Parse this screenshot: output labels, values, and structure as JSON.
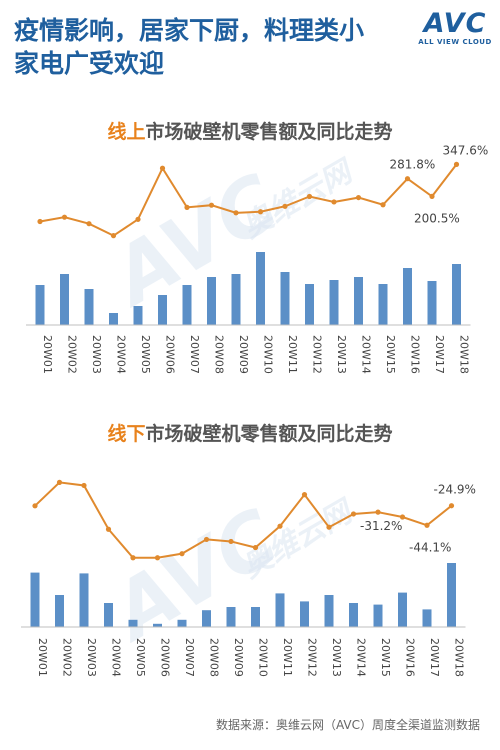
{
  "headline": {
    "line1": "疫情影响，居家下厨，料理类小",
    "line2": "家电广受欢迎"
  },
  "logo": {
    "main": "AVC",
    "sub": "ALL VIEW CLOUD"
  },
  "watermark": {
    "main": "AVC",
    "sub": "奥维云网"
  },
  "source": "数据来源：奥维云网（AVC）周度全渠道监测数据",
  "colors": {
    "bar": "#5b8fc7",
    "line": "#e08a2e",
    "axis": "#bfbfbf",
    "label": "#444444"
  },
  "chart_data": [
    {
      "type": "bar+line",
      "title_highlight": "线上",
      "title_rest": "市场破壁机零售额及同比走势",
      "categories": [
        "20W01",
        "20W02",
        "20W03",
        "20W04",
        "20W05",
        "20W06",
        "20W07",
        "20W08",
        "20W09",
        "20W10",
        "20W11",
        "20W12",
        "20W13",
        "20W14",
        "20W15",
        "20W16",
        "20W17",
        "20W18"
      ],
      "bar_values": [
        40,
        51,
        36,
        12,
        19,
        30,
        40,
        48,
        51,
        73,
        53,
        41,
        45,
        48,
        41,
        57,
        44,
        61
      ],
      "bar_ylim": [
        0,
        100
      ],
      "line_values": [
        85,
        105,
        75,
        20,
        95,
        330,
        150,
        160,
        125,
        130,
        155,
        200,
        175,
        195,
        162,
        281.8,
        200.5,
        347.6
      ],
      "line_ylim": [
        0,
        400
      ],
      "data_labels": {
        "15": "281.8%",
        "16": "200.5%",
        "17": "347.6%"
      }
    },
    {
      "type": "bar+line",
      "title_highlight": "线下",
      "title_rest": "市场破壁机零售额及同比走势",
      "categories": [
        "20W01",
        "20W02",
        "20W03",
        "20W04",
        "20W05",
        "20W06",
        "20W07",
        "20W08",
        "20W09",
        "20W10",
        "20W11",
        "20W12",
        "20W13",
        "20W14",
        "20W15",
        "20W16",
        "20W17",
        "20W18"
      ],
      "bar_values": [
        68,
        40,
        67,
        30,
        9,
        4,
        9,
        21,
        25,
        25,
        42,
        32,
        40,
        30,
        28,
        43,
        22,
        80
      ],
      "bar_ylim": [
        0,
        100
      ],
      "line_values": [
        -25,
        -2,
        -5,
        -48,
        -76,
        -76,
        -72,
        -58,
        -60,
        -66,
        -45,
        -14,
        -46,
        -33,
        -31.2,
        -36,
        -44.1,
        -24.9
      ],
      "line_ylim": [
        -90,
        20
      ],
      "data_labels": {
        "14": "-31.2%",
        "16": "-44.1%",
        "17": "-24.9%"
      }
    }
  ]
}
